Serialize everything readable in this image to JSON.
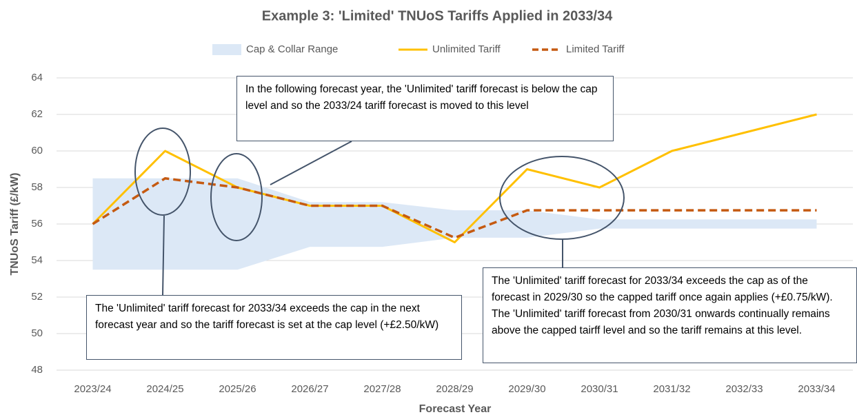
{
  "chart_data": {
    "type": "line",
    "title": "Example 3: 'Limited' TNUoS Tariffs Applied in 2033/34",
    "xlabel": "Forecast Year",
    "ylabel": "TNUoS Tariff (£/kW)",
    "categories": [
      "2023/24",
      "2024/25",
      "2025/26",
      "2026/27",
      "2027/28",
      "2028/29",
      "2029/30",
      "2030/31",
      "2031/32",
      "2032/33",
      "2033/34"
    ],
    "band": {
      "name": "Cap & Collar Range",
      "color": "#dce8f6",
      "upper": [
        58.5,
        58.5,
        58.5,
        57.2,
        57.2,
        56.75,
        56.75,
        56.25,
        56.25,
        56.25,
        56.25
      ],
      "lower": [
        53.5,
        53.5,
        53.5,
        54.75,
        54.75,
        55.25,
        55.25,
        55.75,
        55.75,
        55.75,
        55.75
      ]
    },
    "series": [
      {
        "name": "Unlimited Tariff",
        "color": "#ffc000",
        "values": [
          56,
          60,
          58,
          57,
          57,
          55,
          59,
          58,
          60,
          61,
          62
        ]
      },
      {
        "name": "Limited Tariff",
        "color": "#c55a11",
        "dashed": true,
        "values": [
          56,
          58.5,
          58,
          57,
          57,
          55.25,
          56.75,
          56.75,
          56.75,
          56.75,
          56.75
        ]
      }
    ],
    "ylim": [
      48,
      64
    ],
    "yticks": [
      48,
      50,
      52,
      54,
      56,
      58,
      60,
      62,
      64
    ],
    "grid": true,
    "legend": "top",
    "annotations": [
      "In the following forecast year, the 'Unlimited' tariff forecast is below the cap level and so the 2033/24 tariff forecast is moved to this level",
      "The 'Unlimited' tariff forecast for 2033/34 exceeds the cap in the next forecast year and so the tariff forecast is set at the cap level (+£2.50/kW)",
      "The 'Unlimited' tariff forecast for 2033/34 exceeds the cap as of the forecast in 2029/30 so the capped tariff once again applies (+£0.75/kW). The 'Unlimited' tariff forecast from 2030/31 onwards continually remains above the capped tairff level and so the tariff remains at this level."
    ]
  }
}
